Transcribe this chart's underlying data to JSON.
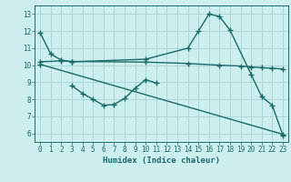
{
  "bg_color": "#cceeed",
  "grid_color": "#aad8d6",
  "line_color": "#1a6b6b",
  "line_width": 1.0,
  "marker": "+",
  "marker_size": 4,
  "marker_lw": 1.0,
  "xlim": [
    -0.5,
    23.5
  ],
  "ylim": [
    5.5,
    13.5
  ],
  "xticks": [
    0,
    1,
    2,
    3,
    4,
    5,
    6,
    7,
    8,
    9,
    10,
    11,
    12,
    13,
    14,
    15,
    16,
    17,
    18,
    19,
    20,
    21,
    22,
    23
  ],
  "yticks": [
    6,
    7,
    8,
    9,
    10,
    11,
    12,
    13
  ],
  "xlabel": "Humidex (Indice chaleur)",
  "curves": [
    {
      "x": [
        0,
        1,
        2,
        3,
        10,
        14,
        15,
        16,
        17,
        18,
        20,
        21,
        22,
        23
      ],
      "y": [
        11.9,
        10.65,
        10.3,
        10.2,
        10.35,
        11.0,
        12.0,
        13.0,
        12.85,
        12.05,
        9.45,
        8.15,
        7.65,
        5.9
      ]
    },
    {
      "x": [
        0,
        2,
        3,
        10,
        14,
        17,
        19,
        20,
        21,
        22,
        23
      ],
      "y": [
        10.2,
        10.25,
        10.22,
        10.18,
        10.1,
        10.0,
        9.95,
        9.9,
        9.85,
        9.82,
        9.78
      ]
    },
    {
      "x": [
        3,
        4,
        5,
        6,
        7,
        8,
        9,
        10,
        11
      ],
      "y": [
        8.8,
        8.35,
        8.0,
        7.65,
        7.7,
        8.05,
        8.65,
        9.15,
        8.95
      ]
    },
    {
      "x": [
        0,
        23
      ],
      "y": [
        10.05,
        5.95
      ]
    }
  ]
}
